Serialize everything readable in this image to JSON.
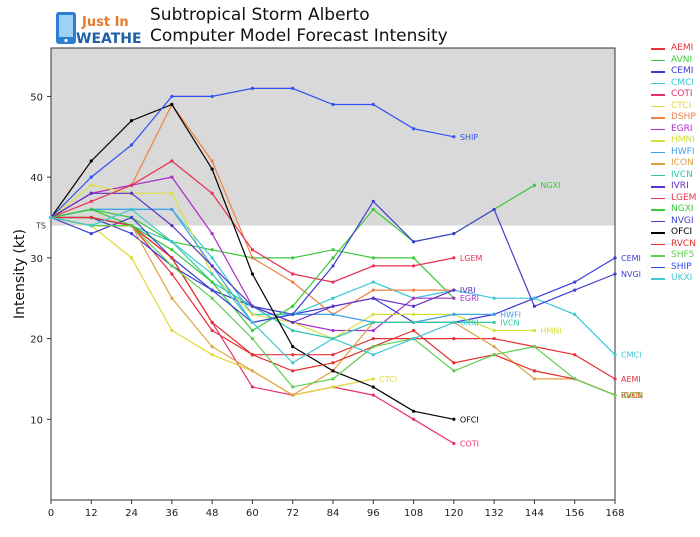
{
  "header": {
    "logo_line1": "Just In",
    "logo_line2": "WEATHER",
    "title_line1": "Subtropical Storm Alberto",
    "title_line2": "Computer Model Forecast Intensity"
  },
  "chart_data": {
    "type": "line",
    "ylabel": "Intensity (kt)",
    "xlabel": "",
    "x_ticks": [
      0,
      12,
      24,
      36,
      48,
      60,
      72,
      84,
      96,
      108,
      120,
      132,
      144,
      156,
      168
    ],
    "y_ticks": [
      10,
      20,
      30,
      40,
      50
    ],
    "xlim": [
      0,
      168
    ],
    "ylim": [
      0,
      56
    ],
    "shaded_band": {
      "from": 34,
      "to": 56,
      "label": "TS"
    },
    "grid": false,
    "legend_position": "right",
    "series": [
      {
        "name": "AEMI",
        "color": "#e8303a",
        "points": [
          [
            0,
            35
          ],
          [
            12,
            34
          ],
          [
            24,
            34
          ],
          [
            36,
            28
          ],
          [
            48,
            21
          ],
          [
            60,
            18
          ],
          [
            72,
            18
          ],
          [
            84,
            18
          ],
          [
            96,
            20
          ],
          [
            108,
            20
          ],
          [
            120,
            20
          ],
          [
            132,
            20
          ],
          [
            144,
            19
          ],
          [
            156,
            18
          ],
          [
            168,
            15
          ]
        ],
        "end_label": "AEMI"
      },
      {
        "name": "AVNI",
        "color": "#3cc83c",
        "points": [
          [
            0,
            35
          ],
          [
            12,
            36
          ],
          [
            24,
            35
          ],
          [
            36,
            32
          ],
          [
            48,
            31
          ],
          [
            60,
            30
          ],
          [
            72,
            30
          ],
          [
            84,
            31
          ],
          [
            96,
            30
          ],
          [
            108,
            30
          ],
          [
            120,
            25
          ]
        ],
        "end_label": ""
      },
      {
        "name": "CEMI",
        "color": "#3a3ad8",
        "points": [
          [
            0,
            35
          ],
          [
            12,
            35
          ],
          [
            24,
            33
          ],
          [
            36,
            29
          ],
          [
            48,
            26
          ],
          [
            60,
            24
          ],
          [
            72,
            23
          ],
          [
            84,
            24
          ],
          [
            96,
            25
          ],
          [
            108,
            22
          ],
          [
            120,
            22
          ],
          [
            132,
            23
          ],
          [
            144,
            25
          ],
          [
            156,
            27
          ],
          [
            168,
            30
          ]
        ],
        "end_label": "CEMI"
      },
      {
        "name": "CMCI",
        "color": "#38c8d8",
        "points": [
          [
            0,
            35
          ],
          [
            12,
            36
          ],
          [
            24,
            36
          ],
          [
            36,
            36
          ],
          [
            48,
            30
          ],
          [
            60,
            23
          ],
          [
            72,
            23
          ],
          [
            84,
            25
          ],
          [
            96,
            27
          ],
          [
            108,
            25
          ],
          [
            120,
            26
          ],
          [
            132,
            25
          ],
          [
            144,
            25
          ],
          [
            156,
            23
          ],
          [
            168,
            18
          ]
        ],
        "end_label": "CMCI"
      },
      {
        "name": "COTI",
        "color": "#e8306a",
        "points": [
          [
            0,
            35
          ],
          [
            12,
            35
          ],
          [
            24,
            34
          ],
          [
            36,
            30
          ],
          [
            48,
            22
          ],
          [
            60,
            14
          ],
          [
            72,
            13
          ],
          [
            84,
            14
          ],
          [
            96,
            13
          ],
          [
            108,
            10
          ],
          [
            120,
            7
          ]
        ],
        "end_label": "COTI"
      },
      {
        "name": "CTCI",
        "color": "#e0d838",
        "points": [
          [
            0,
            35
          ],
          [
            12,
            34
          ],
          [
            24,
            30
          ],
          [
            36,
            21
          ],
          [
            48,
            18
          ],
          [
            60,
            16
          ],
          [
            72,
            13
          ],
          [
            84,
            14
          ],
          [
            96,
            15
          ]
        ],
        "end_label": "CTCI"
      },
      {
        "name": "DSHP",
        "color": "#f08040",
        "points": [
          [
            0,
            35
          ],
          [
            12,
            38
          ],
          [
            24,
            39
          ],
          [
            36,
            49
          ],
          [
            48,
            42
          ],
          [
            60,
            30
          ],
          [
            72,
            27
          ],
          [
            84,
            23
          ],
          [
            96,
            26
          ],
          [
            108,
            26
          ],
          [
            120,
            26
          ]
        ],
        "end_label": ""
      },
      {
        "name": "EGRI",
        "color": "#a830c8",
        "points": [
          [
            0,
            35
          ],
          [
            12,
            38
          ],
          [
            24,
            39
          ],
          [
            36,
            40
          ],
          [
            48,
            33
          ],
          [
            60,
            24
          ],
          [
            72,
            22
          ],
          [
            84,
            21
          ],
          [
            96,
            21
          ],
          [
            108,
            25
          ],
          [
            120,
            25
          ]
        ],
        "end_label": "EGRI"
      },
      {
        "name": "HMNI",
        "color": "#d8e040",
        "points": [
          [
            0,
            35
          ],
          [
            12,
            39
          ],
          [
            24,
            38
          ],
          [
            36,
            38
          ],
          [
            48,
            28
          ],
          [
            60,
            23
          ],
          [
            72,
            22
          ],
          [
            84,
            20
          ],
          [
            96,
            23
          ],
          [
            108,
            23
          ],
          [
            120,
            23
          ],
          [
            132,
            21
          ],
          [
            144,
            21
          ]
        ],
        "end_label": "HMNI"
      },
      {
        "name": "HWFI",
        "color": "#40a0e8",
        "points": [
          [
            0,
            35
          ],
          [
            12,
            36
          ],
          [
            24,
            36
          ],
          [
            36,
            36
          ],
          [
            48,
            29
          ],
          [
            60,
            22
          ],
          [
            72,
            23
          ],
          [
            84,
            23
          ],
          [
            96,
            22
          ],
          [
            108,
            22
          ],
          [
            120,
            23
          ],
          [
            132,
            23
          ]
        ],
        "end_label": "HWFI"
      },
      {
        "name": "ICON",
        "color": "#e0a040",
        "points": [
          [
            0,
            35
          ],
          [
            12,
            34
          ],
          [
            24,
            34
          ],
          [
            36,
            25
          ],
          [
            48,
            19
          ],
          [
            60,
            16
          ],
          [
            72,
            13
          ],
          [
            84,
            16
          ],
          [
            96,
            22
          ],
          [
            108,
            22
          ],
          [
            120,
            22
          ],
          [
            132,
            19
          ],
          [
            144,
            15
          ],
          [
            156,
            15
          ],
          [
            168,
            13
          ]
        ],
        "end_label": "ICON"
      },
      {
        "name": "IVCN",
        "color": "#30c8a8",
        "points": [
          [
            0,
            35
          ],
          [
            12,
            35
          ],
          [
            24,
            34
          ],
          [
            36,
            32
          ],
          [
            48,
            27
          ],
          [
            60,
            24
          ],
          [
            72,
            21
          ],
          [
            84,
            20
          ],
          [
            96,
            22
          ],
          [
            108,
            22
          ],
          [
            120,
            22
          ],
          [
            132,
            22
          ]
        ],
        "end_label": "IVCN"
      },
      {
        "name": "IVRI",
        "color": "#6030c8",
        "points": [
          [
            0,
            35
          ],
          [
            12,
            38
          ],
          [
            24,
            38
          ],
          [
            36,
            34
          ],
          [
            48,
            29
          ],
          [
            60,
            24
          ],
          [
            72,
            22
          ],
          [
            84,
            24
          ],
          [
            96,
            25
          ],
          [
            108,
            24
          ],
          [
            120,
            26
          ]
        ],
        "end_label": "IVRI"
      },
      {
        "name": "LGEM",
        "color": "#e83050",
        "points": [
          [
            0,
            35
          ],
          [
            12,
            37
          ],
          [
            24,
            39
          ],
          [
            36,
            42
          ],
          [
            48,
            38
          ],
          [
            60,
            31
          ],
          [
            72,
            28
          ],
          [
            84,
            27
          ],
          [
            96,
            29
          ],
          [
            108,
            29
          ],
          [
            120,
            30
          ]
        ],
        "end_label": "LGEM"
      },
      {
        "name": "NGXI",
        "color": "#38c838",
        "points": [
          [
            0,
            35
          ],
          [
            12,
            36
          ],
          [
            24,
            34
          ],
          [
            36,
            31
          ],
          [
            48,
            27
          ],
          [
            60,
            21
          ],
          [
            72,
            24
          ],
          [
            84,
            30
          ],
          [
            96,
            36
          ],
          [
            108,
            32
          ],
          [
            120,
            33
          ],
          [
            132,
            36
          ],
          [
            144,
            39
          ]
        ],
        "end_label": "NGXI"
      },
      {
        "name": "NVGI",
        "color": "#4040d0",
        "points": [
          [
            0,
            35
          ],
          [
            12,
            33
          ],
          [
            24,
            35
          ],
          [
            36,
            30
          ],
          [
            48,
            26
          ],
          [
            60,
            22
          ],
          [
            72,
            23
          ],
          [
            84,
            29
          ],
          [
            96,
            37
          ],
          [
            108,
            32
          ],
          [
            120,
            33
          ],
          [
            132,
            36
          ],
          [
            144,
            24
          ],
          [
            156,
            26
          ],
          [
            168,
            28
          ]
        ],
        "end_label": "NVGI"
      },
      {
        "name": "OFCI",
        "color": "#000000",
        "points": [
          [
            0,
            35
          ],
          [
            12,
            42
          ],
          [
            24,
            47
          ],
          [
            36,
            49
          ],
          [
            48,
            41
          ],
          [
            60,
            28
          ],
          [
            72,
            19
          ],
          [
            84,
            16
          ],
          [
            96,
            14
          ],
          [
            108,
            11
          ],
          [
            120,
            10
          ]
        ],
        "end_label": "OFCI"
      },
      {
        "name": "RVCN",
        "color": "#e03028",
        "points": [
          [
            0,
            35
          ],
          [
            12,
            35
          ],
          [
            24,
            34
          ],
          [
            36,
            30
          ],
          [
            48,
            22
          ],
          [
            60,
            18
          ],
          [
            72,
            16
          ],
          [
            84,
            17
          ],
          [
            96,
            19
          ],
          [
            108,
            21
          ],
          [
            120,
            17
          ],
          [
            132,
            18
          ],
          [
            144,
            16
          ],
          [
            156,
            15
          ],
          [
            168,
            13
          ]
        ],
        "end_label": "RVCN"
      },
      {
        "name": "SHF5",
        "color": "#60d050",
        "points": [
          [
            0,
            35
          ],
          [
            12,
            34
          ],
          [
            24,
            34
          ],
          [
            36,
            29
          ],
          [
            48,
            25
          ],
          [
            60,
            20
          ],
          [
            72,
            14
          ],
          [
            84,
            15
          ],
          [
            96,
            19
          ],
          [
            108,
            20
          ],
          [
            120,
            16
          ],
          [
            132,
            18
          ],
          [
            144,
            19
          ],
          [
            156,
            15
          ],
          [
            168,
            13
          ]
        ],
        "end_label": "SHF5"
      },
      {
        "name": "SHIP",
        "color": "#3050f0",
        "points": [
          [
            0,
            35
          ],
          [
            12,
            40
          ],
          [
            24,
            44
          ],
          [
            36,
            50
          ],
          [
            48,
            50
          ],
          [
            60,
            51
          ],
          [
            72,
            51
          ],
          [
            84,
            49
          ],
          [
            96,
            49
          ],
          [
            108,
            46
          ],
          [
            120,
            45
          ]
        ],
        "end_label": "SHIP"
      },
      {
        "name": "UKXI",
        "color": "#40c8d0",
        "points": [
          [
            0,
            35
          ],
          [
            12,
            34
          ],
          [
            24,
            36
          ],
          [
            36,
            32
          ],
          [
            48,
            28
          ],
          [
            60,
            22
          ],
          [
            72,
            17
          ],
          [
            84,
            20
          ],
          [
            96,
            18
          ],
          [
            108,
            20
          ],
          [
            120,
            22
          ]
        ],
        "end_label": "UKXI"
      }
    ]
  }
}
